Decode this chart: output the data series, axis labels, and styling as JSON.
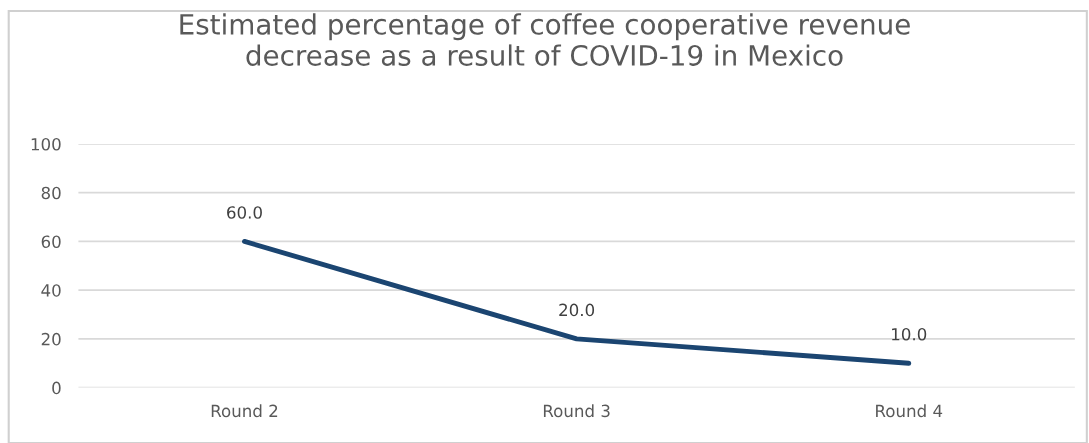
{
  "chart_data": {
    "type": "line",
    "title": "Estimated percentage of coffee cooperative revenue\ndecrease as a result of COVID-19 in Mexico",
    "categories": [
      "Round 2",
      "Round 3",
      "Round 4"
    ],
    "series": [
      {
        "color": "#1b4571",
        "values": [
          60.0,
          20.0,
          10.0
        ]
      }
    ],
    "value_labels": [
      "60.0",
      "20.0",
      "10.0"
    ],
    "ylim": [
      0,
      100
    ],
    "yticks": [
      0,
      20,
      40,
      60,
      80,
      100
    ],
    "grid": "y",
    "marker": "none",
    "line_style": "solid"
  }
}
